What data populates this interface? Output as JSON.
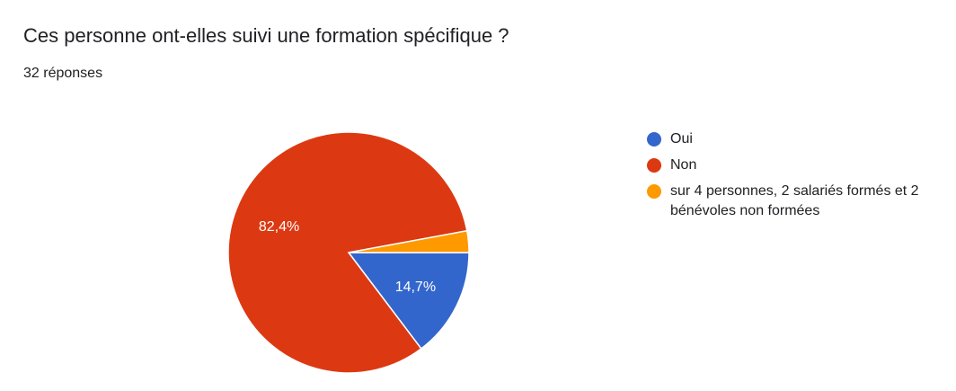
{
  "card": {
    "title": "Ces personne ont-elles suivi une formation spécifique ?",
    "subtitle": "32 réponses"
  },
  "chart_data": {
    "type": "pie",
    "title": "Ces personne ont-elles suivi une formation spécifique ?",
    "subtitle": "32 réponses",
    "legend_position": "right",
    "slices": [
      {
        "label": "Oui",
        "value": 14.7,
        "value_label": "14,7%",
        "color": "#3366cc"
      },
      {
        "label": "Non",
        "value": 82.4,
        "value_label": "82,4%",
        "color": "#dc3912"
      },
      {
        "label": "sur 4 personnes, 2 salariés formés et 2 bénévoles non formées",
        "value": 2.9,
        "value_label": "",
        "color": "#ff9900"
      }
    ]
  }
}
